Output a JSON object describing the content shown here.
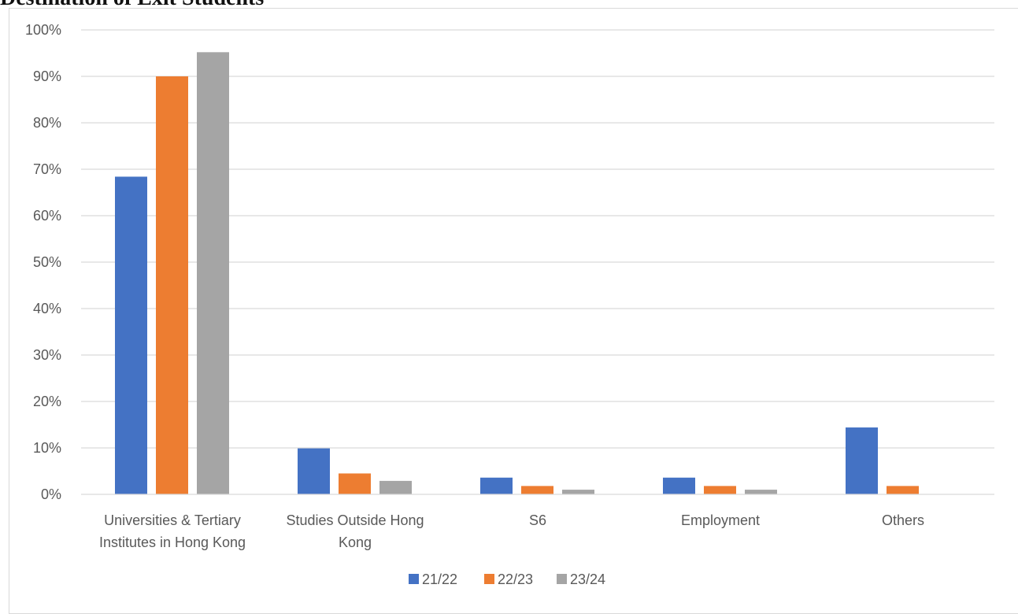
{
  "chart_data": {
    "type": "bar",
    "title": "Destination of Exit Students",
    "categories": [
      [
        "Universities & Tertiary",
        "Institutes in Hong Kong"
      ],
      [
        "Studies Outside Hong",
        "Kong"
      ],
      [
        "S6"
      ],
      [
        "Employment"
      ],
      [
        "Others"
      ]
    ],
    "series": [
      {
        "name": "21/22",
        "color": "#4472C4",
        "values": [
          68.4,
          9.9,
          3.6,
          3.6,
          14.4
        ]
      },
      {
        "name": "22/23",
        "color": "#ED7D31",
        "values": [
          90.0,
          4.5,
          1.8,
          1.8,
          1.8
        ]
      },
      {
        "name": "23/24",
        "color": "#A5A5A5",
        "values": [
          95.2,
          2.9,
          1.0,
          1.0,
          0
        ]
      }
    ],
    "ylim": [
      0,
      100
    ],
    "y_ticks": [
      "0%",
      "10%",
      "20%",
      "30%",
      "40%",
      "50%",
      "60%",
      "70%",
      "80%",
      "90%",
      "100%"
    ],
    "y_tick_values": [
      0,
      10,
      20,
      30,
      40,
      50,
      60,
      70,
      80,
      90,
      100
    ],
    "xlabel": "",
    "ylabel": "",
    "grid": true,
    "gridline_color": "#d9d9d9",
    "legend_position": "bottom"
  }
}
